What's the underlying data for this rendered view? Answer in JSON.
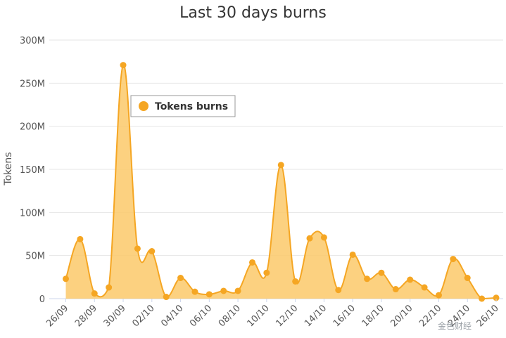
{
  "title": "Last 30 days burns",
  "watermark": "金色财经",
  "colors": {
    "series": "#f5a623",
    "fill": "#fcc96a",
    "grid": "#e6e6e6",
    "axis": "#ccd6eb"
  },
  "chart_data": {
    "type": "area",
    "title": "Last 30 days burns",
    "xlabel": "",
    "ylabel": "Tokens",
    "ylim": [
      0,
      300000000
    ],
    "y_ticks": [
      0,
      50000000,
      100000000,
      150000000,
      200000000,
      250000000,
      300000000
    ],
    "y_tick_labels": [
      "0",
      "50M",
      "100M",
      "150M",
      "200M",
      "250M",
      "300M"
    ],
    "x_tick_labels": [
      "26/09",
      "28/09",
      "30/09",
      "02/10",
      "04/10",
      "06/10",
      "08/10",
      "10/10",
      "12/10",
      "14/10",
      "16/10",
      "18/10",
      "20/10",
      "22/10",
      "24/10",
      "26/10"
    ],
    "x_tick_indices": [
      0,
      2,
      4,
      6,
      8,
      10,
      12,
      14,
      16,
      18,
      20,
      22,
      24,
      26,
      28,
      30
    ],
    "grid": true,
    "legend_position": "top-left",
    "series": [
      {
        "name": "Tokens burns",
        "x": [
          "26/09",
          "27/09",
          "28/09",
          "29/09",
          "30/09",
          "01/10",
          "02/10",
          "03/10",
          "04/10",
          "05/10",
          "06/10",
          "07/10",
          "08/10",
          "09/10",
          "10/10",
          "11/10",
          "12/10",
          "13/10",
          "14/10",
          "15/10",
          "16/10",
          "17/10",
          "18/10",
          "19/10",
          "20/10",
          "21/10",
          "22/10",
          "23/10",
          "24/10",
          "25/10",
          "26/10"
        ],
        "values": [
          23000000,
          69000000,
          6000000,
          13000000,
          271000000,
          58000000,
          55000000,
          2000000,
          24000000,
          8000000,
          5000000,
          9000000,
          9000000,
          42000000,
          30000000,
          155000000,
          20000000,
          70000000,
          71000000,
          10000000,
          51000000,
          23000000,
          30000000,
          11000000,
          22000000,
          13000000,
          4000000,
          46000000,
          24000000,
          0,
          1000000
        ]
      }
    ]
  }
}
